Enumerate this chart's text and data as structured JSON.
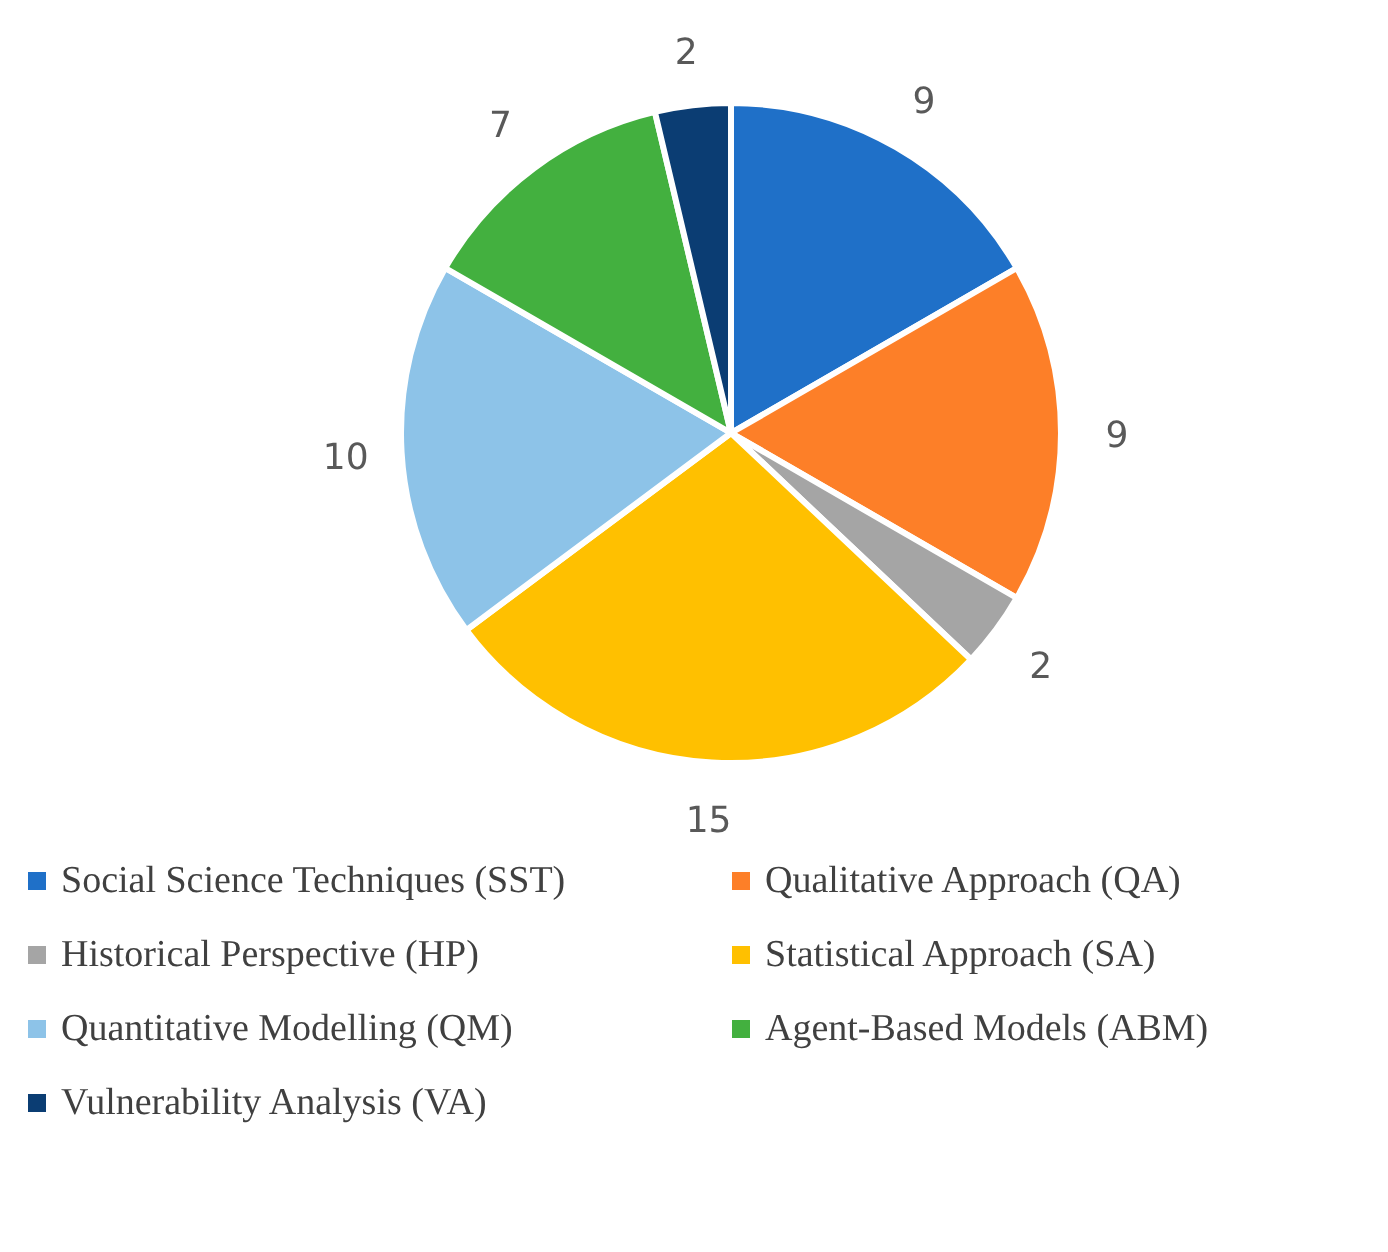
{
  "chart_data": {
    "type": "pie",
    "categories": [
      "Social Science Techniques (SST)",
      "Qualitative Approach (QA)",
      "Historical Perspective (HP)",
      "Statistical Approach (SA)",
      "Quantitative Modelling (QM)",
      "Agent-Based Models (ABM)",
      "Vulnerability Analysis (VA)"
    ],
    "values": [
      9,
      9,
      2,
      15,
      10,
      7,
      2
    ],
    "colors": [
      "#1f70c8",
      "#fd7f28",
      "#a5a5a5",
      "#ffc000",
      "#8dc3e8",
      "#43b03f",
      "#0b3d73"
    ],
    "data_labels": true,
    "legend": "bottom"
  }
}
